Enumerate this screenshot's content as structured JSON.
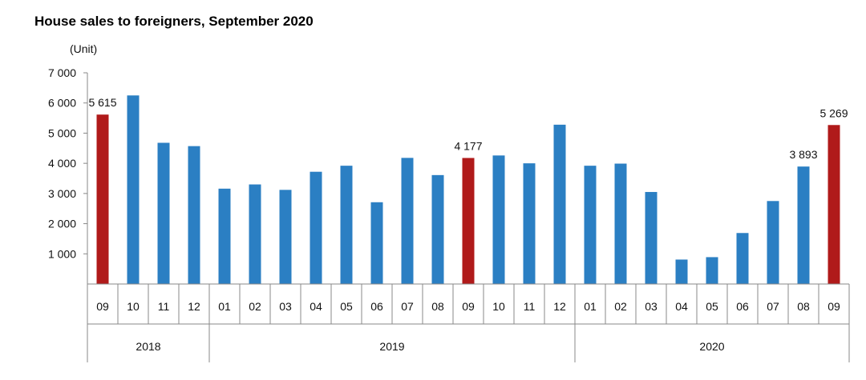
{
  "chart_data": {
    "type": "bar",
    "title": "House sales to foreigners, September 2020",
    "unit_label": "(Unit)",
    "ylim": [
      0,
      7000
    ],
    "y_ticks": [
      1000,
      2000,
      3000,
      4000,
      5000,
      6000,
      7000
    ],
    "y_tick_labels": [
      "1 000",
      "2 000",
      "3 000",
      "4 000",
      "5 000",
      "6 000",
      "7 000"
    ],
    "grid": false,
    "categories": [
      "09",
      "10",
      "11",
      "12",
      "01",
      "02",
      "03",
      "04",
      "05",
      "06",
      "07",
      "08",
      "09",
      "10",
      "11",
      "12",
      "01",
      "02",
      "03",
      "04",
      "05",
      "06",
      "07",
      "08",
      "09"
    ],
    "values": [
      5615,
      6250,
      4680,
      4570,
      3160,
      3300,
      3120,
      3720,
      3920,
      2710,
      4180,
      3610,
      4177,
      4260,
      4000,
      5280,
      3920,
      3990,
      3050,
      810,
      890,
      1690,
      2750,
      3893,
      5269
    ],
    "highlight": [
      true,
      false,
      false,
      false,
      false,
      false,
      false,
      false,
      false,
      false,
      false,
      false,
      true,
      false,
      false,
      false,
      false,
      false,
      false,
      false,
      false,
      false,
      false,
      false,
      true
    ],
    "data_labels": [
      {
        "index": 0,
        "text": "5 615"
      },
      {
        "index": 12,
        "text": "4 177"
      },
      {
        "index": 23,
        "text": "3 893"
      },
      {
        "index": 24,
        "text": "5 269"
      }
    ],
    "year_groups": [
      {
        "label": "2018",
        "start": 0,
        "count": 4
      },
      {
        "label": "2019",
        "start": 4,
        "count": 12
      },
      {
        "label": "2020",
        "start": 16,
        "count": 9
      }
    ],
    "colors": {
      "bar": "#2b7fc3",
      "highlight": "#b01a1a",
      "axis": "#888888"
    }
  }
}
